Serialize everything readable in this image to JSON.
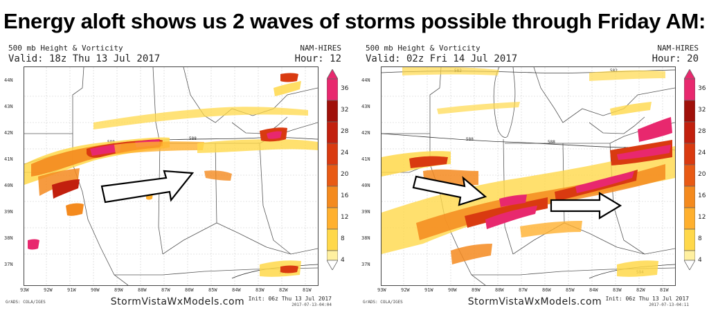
{
  "headline": "Energy aloft shows us 2 waves of storms possible through Friday AM:",
  "colors": {
    "c4": "#FFF0A0",
    "c8": "#FFD84A",
    "c12": "#FFB02E",
    "c16": "#F48A1E",
    "c20": "#E85A14",
    "c24": "#D93A10",
    "c28": "#C2200E",
    "c32": "#A0100A",
    "c36": "#E8286E"
  },
  "colorbar_levels": [
    "4",
    "8",
    "12",
    "16",
    "20",
    "24",
    "28",
    "32",
    "36"
  ],
  "lat_labels": [
    "44N",
    "43N",
    "42N",
    "41N",
    "40N",
    "39N",
    "38N",
    "37N"
  ],
  "lon_labels": [
    "93W",
    "92W",
    "91W",
    "90W",
    "89W",
    "88W",
    "87W",
    "86W",
    "85W",
    "84W",
    "83W",
    "82W",
    "81W"
  ],
  "panels": [
    {
      "title": "500 mb Height & Vorticity",
      "valid": "Valid: 18z Thu 13 Jul 2017",
      "model": "NAM-HIRES",
      "hour": "Hour: 12",
      "website": "StormVistaWxModels.com",
      "grads": "GrADS: COLA/IGES",
      "init": "Init: 06z Thu 13 Jul 2017",
      "stamp": "2017-07-13-04:04",
      "contours": [
        "588",
        "588",
        "588",
        "594"
      ]
    },
    {
      "title": "500 mb Height & Vorticity",
      "valid": "Valid: 02z Fri 14 Jul 2017",
      "model": "NAM-HIRES",
      "hour": "Hour: 20",
      "website": "StormVistaWxModels.com",
      "grads": "GrADS: COLA/IGES",
      "init": "Init: 06z Thu 13 Jul 2017",
      "stamp": "2017-07-13-04:11",
      "contours": [
        "582",
        "582",
        "588",
        "588",
        "588",
        "594"
      ]
    }
  ]
}
